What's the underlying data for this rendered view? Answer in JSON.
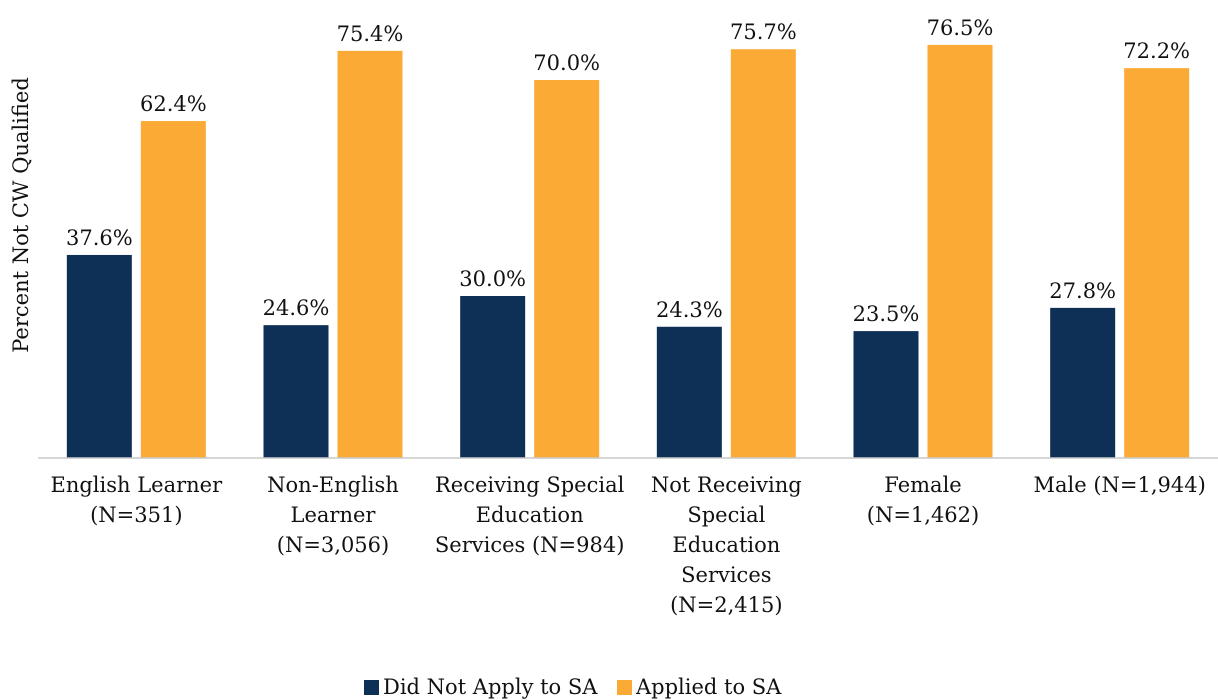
{
  "chart_data": {
    "type": "bar",
    "y_axis_label": "Percent Not CW Qualified",
    "categories": [
      "English Learner (N=351)",
      "Non-English Learner (N=3,056)",
      "Receiving Special Education Services (N=984)",
      "Not Receiving Special Education Services (N=2,415)",
      "Female (N=1,462)",
      "Male (N=1,944)"
    ],
    "series": [
      {
        "name": "Did Not Apply to SA",
        "color": "#0e2f56",
        "values": [
          37.6,
          24.6,
          30.0,
          24.3,
          23.5,
          27.8
        ],
        "value_labels": [
          "37.6%",
          "24.6%",
          "30.0%",
          "24.3%",
          "23.5%",
          "27.8%"
        ]
      },
      {
        "name": "Applied to SA",
        "color": "#fbab35",
        "values": [
          62.4,
          75.4,
          70.0,
          75.7,
          76.5,
          72.2
        ],
        "value_labels": [
          "62.4%",
          "75.4%",
          "70.0%",
          "75.7%",
          "76.5%",
          "72.2%"
        ]
      }
    ],
    "ylim": [
      0,
      80
    ],
    "legend": "bottom"
  }
}
